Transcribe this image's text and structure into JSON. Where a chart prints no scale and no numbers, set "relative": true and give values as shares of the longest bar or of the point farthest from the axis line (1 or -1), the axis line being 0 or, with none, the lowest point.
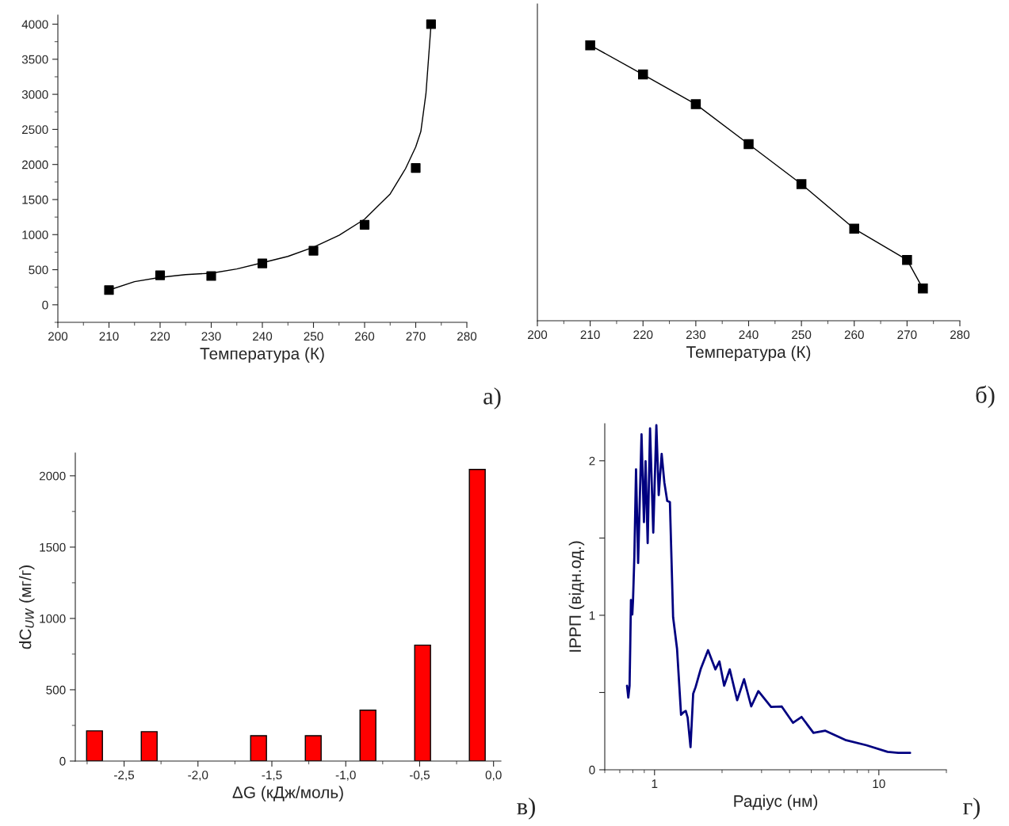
{
  "chart_data": [
    {
      "type": "line",
      "xlabel": "Температура (К)",
      "xlim": [
        200,
        280
      ],
      "xticks": [
        200,
        210,
        220,
        230,
        240,
        250,
        260,
        270,
        280
      ],
      "ylim": [
        -250,
        4130
      ],
      "yticks": [
        0,
        500,
        1000,
        1500,
        2000,
        2500,
        3000,
        3500,
        4000
      ],
      "annotations": [
        "а)"
      ],
      "series": [
        {
          "type": "scatter",
          "marker": "square",
          "color": "#000000",
          "x": [
            210,
            220,
            230,
            240,
            250,
            260,
            270,
            273
          ],
          "values": [
            210,
            420,
            410,
            590,
            770,
            1140,
            1950,
            4000
          ]
        },
        {
          "type": "line",
          "marker": "none",
          "color": "#000000",
          "x": [
            210,
            215,
            220,
            225,
            230,
            235,
            240,
            245,
            250,
            255,
            260,
            265,
            268,
            270,
            271,
            272,
            273
          ],
          "values": [
            210,
            330,
            390,
            430,
            450,
            510,
            600,
            690,
            820,
            990,
            1220,
            1580,
            1940,
            2250,
            2470,
            3010,
            4000
          ]
        }
      ]
    },
    {
      "type": "line",
      "relative": true,
      "xlabel": "Температура (К)",
      "xlim": [
        200,
        280
      ],
      "xticks": [
        200,
        210,
        220,
        230,
        240,
        250,
        260,
        270,
        280
      ],
      "annotations": [
        "б)"
      ],
      "series": [
        {
          "marker": "square",
          "color": "#000000",
          "x": [
            210,
            220,
            230,
            240,
            250,
            260,
            270,
            273
          ],
          "values": [
            1,
            0.894,
            0.786,
            0.641,
            0.496,
            0.334,
            0.221,
            0.117
          ]
        }
      ]
    },
    {
      "type": "bar",
      "xlabel": "ΔG (кДж/моль)",
      "ylabel": "dC$_{UW}$ (мг/г)",
      "xlim": [
        -2.83,
        0.05
      ],
      "xticks": [
        {
          "value": -2.5,
          "label": "-2,5"
        },
        {
          "value": -2.0,
          "label": "-2,0"
        },
        {
          "value": -1.5,
          "label": "-1,5"
        },
        {
          "value": -1.0,
          "label": "-1,0"
        },
        {
          "value": -0.5,
          "label": "-0,5"
        },
        {
          "value": 0.0,
          "label": "0,0"
        }
      ],
      "ylim": [
        0,
        2160
      ],
      "yticks": [
        0,
        500,
        1000,
        1500,
        2000
      ],
      "annotations": [
        "в)"
      ],
      "series": [
        {
          "color": "#ff0000",
          "x": [
            -2.7,
            -2.33,
            -1.59,
            -1.22,
            -0.85,
            -0.48,
            -0.11
          ],
          "values": [
            212,
            206,
            178,
            178,
            357,
            813,
            2045
          ]
        }
      ]
    },
    {
      "type": "line",
      "log": "x",
      "xlabel": "Радіус (нм)",
      "ylabel": "ІРРП (відн.од.)",
      "xlim": [
        0.6,
        20
      ],
      "xticks": [
        1,
        10
      ],
      "ylim": [
        0,
        2.24
      ],
      "yticks": [
        0,
        {
          "value": 0.5,
          "label": null
        },
        1,
        {
          "value": 1.5,
          "label": null
        },
        2
      ],
      "annotations": [
        "г)"
      ],
      "series": [
        {
          "marker": "none",
          "color": "#000080",
          "x": [
            0.754,
            0.764,
            0.774,
            0.779,
            0.785,
            0.796,
            0.802,
            0.813,
            0.827,
            0.845,
            0.875,
            0.897,
            0.912,
            0.932,
            0.955,
            0.987,
            1.019,
            1.044,
            1.076,
            1.106,
            1.139,
            1.171,
            1.21,
            1.26,
            1.313,
            1.349,
            1.378,
            1.405,
            1.447,
            1.487,
            1.524,
            1.609,
            1.732,
            1.868,
            1.947,
            2.044,
            2.164,
            2.335,
            2.507,
            2.698,
            2.903,
            3.307,
            3.687,
            4.145,
            4.522,
            5.11,
            5.774,
            7.083,
            8.801,
            10.94,
            12.2,
            13.78
          ],
          "values": [
            0.544,
            0.467,
            0.544,
            0.783,
            1.099,
            1.005,
            1.099,
            1.381,
            1.945,
            1.338,
            2.171,
            1.603,
            1.997,
            1.467,
            2.21,
            1.535,
            2.23,
            1.778,
            2.044,
            1.86,
            1.74,
            1.732,
            0.988,
            0.783,
            0.356,
            0.373,
            0.381,
            0.338,
            0.147,
            0.492,
            0.535,
            0.655,
            0.774,
            0.65,
            0.701,
            0.544,
            0.65,
            0.45,
            0.586,
            0.41,
            0.509,
            0.407,
            0.41,
            0.304,
            0.342,
            0.239,
            0.253,
            0.193,
            0.159,
            0.116,
            0.109,
            0.109
          ]
        }
      ]
    }
  ]
}
